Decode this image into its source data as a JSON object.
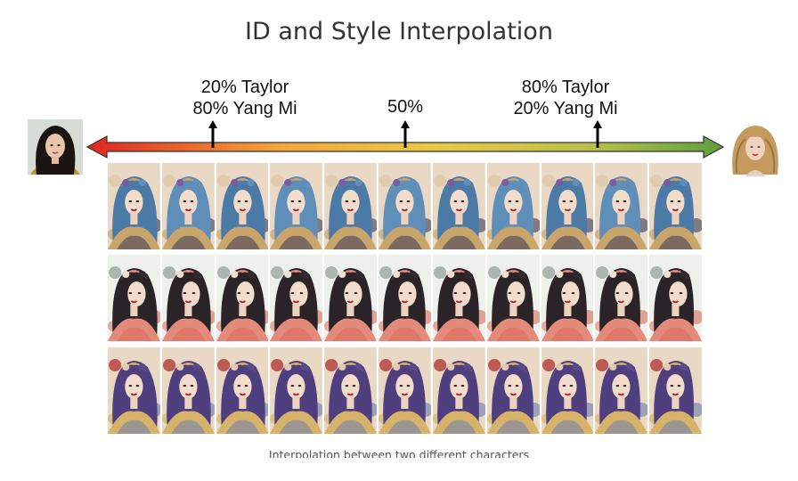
{
  "title": "ID and Style Interpolation",
  "labels": {
    "left": [
      "20% Taylor",
      "80% Yang Mi"
    ],
    "middle": "50%",
    "right": [
      "80% Taylor",
      "20% Yang Mi"
    ]
  },
  "arrow": {
    "colors": [
      "#e0241f",
      "#f4a63a",
      "#e8c844",
      "#b7c04a",
      "#5d9e3d"
    ],
    "markers_fraction": [
      0.2,
      0.5,
      0.8
    ]
  },
  "avatars": {
    "left": "portrait-photo",
    "right": "portrait-photo"
  },
  "grid": {
    "rows": 3,
    "columns": 11,
    "row_styles": [
      {
        "palette": [
          "#5f8fb8",
          "#c9a46b",
          "#7a5aa0",
          "#e0c7a8",
          "#3b3b5a"
        ]
      },
      {
        "palette": [
          "#2f2a2e",
          "#e48a7a",
          "#f0e0d0",
          "#9aa7a0",
          "#d96a5a"
        ]
      },
      {
        "palette": [
          "#5a4a8a",
          "#d7b36a",
          "#e3c9b0",
          "#b33a3a",
          "#6b7bb0"
        ]
      }
    ]
  },
  "caption": "Interpolation between two different characters"
}
